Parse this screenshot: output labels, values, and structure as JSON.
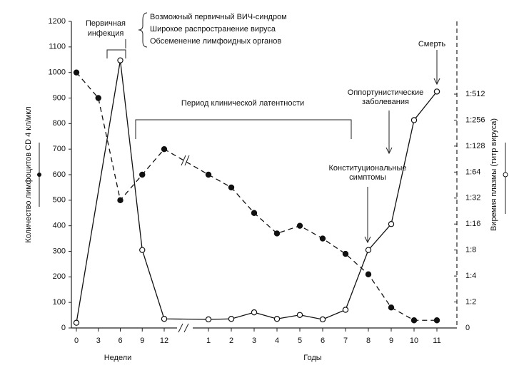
{
  "chart_data": {
    "type": "line",
    "ylabel": "Количество лимфоцитов CD 4 кл/мкл",
    "y2label": "Виремия плазмы (титр вируса)",
    "xlabel_weeks": "Недели",
    "xlabel_years": "Годы",
    "xlim": [
      0,
      572
    ],
    "xbreak": [
      12,
      52
    ],
    "xticks": [
      0,
      3,
      6,
      9,
      12,
      {
        "value": 52,
        "label": "1"
      },
      {
        "value": 104,
        "label": "2"
      },
      {
        "value": 156,
        "label": "3"
      },
      {
        "value": 208,
        "label": "4"
      },
      {
        "value": 260,
        "label": "5"
      },
      {
        "value": 312,
        "label": "6"
      },
      {
        "value": 364,
        "label": "7"
      },
      {
        "value": 416,
        "label": "8"
      },
      {
        "value": 468,
        "label": "9"
      },
      {
        "value": 520,
        "label": "10"
      },
      {
        "value": 572,
        "label": "11"
      }
    ],
    "ylim": [
      0,
      1200
    ],
    "yticks": [
      0,
      100,
      200,
      300,
      400,
      500,
      600,
      700,
      800,
      900,
      1000,
      1100,
      1200
    ],
    "y2lim": [
      0,
      11.8
    ],
    "y2ticks": [
      0,
      {
        "value": 1,
        "label": "1:2"
      },
      {
        "value": 2,
        "label": "1:4"
      },
      {
        "value": 3,
        "label": "1:8"
      },
      {
        "value": 4,
        "label": "1:16"
      },
      {
        "value": 5,
        "label": "1:32"
      },
      {
        "value": 6,
        "label": "1:64"
      },
      {
        "value": 7,
        "label": "1:128"
      },
      {
        "value": 8,
        "label": "1:256"
      },
      {
        "value": 9,
        "label": "1:512"
      }
    ],
    "series": [
      {
        "color": "#111111",
        "marker": "filled",
        "dashed": true,
        "x": [
          0,
          3,
          6,
          9,
          12,
          52,
          104,
          156,
          208,
          260,
          312,
          364,
          416,
          468,
          520,
          572
        ],
        "values": [
          1000,
          900,
          500,
          600,
          700,
          600,
          550,
          450,
          370,
          400,
          350,
          290,
          210,
          80,
          30,
          30
        ]
      },
      {
        "color": "#111111",
        "marker": "open",
        "dashed": false,
        "axis": "y2",
        "x": [
          0,
          6,
          9,
          12,
          52,
          104,
          156,
          208,
          260,
          312,
          364,
          416,
          468,
          520,
          572
        ],
        "values": [
          0.2,
          10.3,
          3.0,
          0.35,
          0.33,
          0.35,
          0.6,
          0.35,
          0.5,
          0.33,
          0.7,
          3.0,
          4.0,
          8.0,
          9.1
        ]
      }
    ],
    "annotations": {
      "primary_infection": [
        "Первичная",
        "инфекция"
      ],
      "acute_phase": [
        "Возможный первичный ВИЧ-синдром",
        "Широкое распространение вируса",
        "Обсеменение лимфоидных органов"
      ],
      "death": "Смерть",
      "latency": "Период клинической латентности",
      "opportunistic": [
        "Оппортунистические",
        "заболевания"
      ],
      "constitutional": [
        "Конституциональные",
        "симптомы"
      ]
    }
  }
}
